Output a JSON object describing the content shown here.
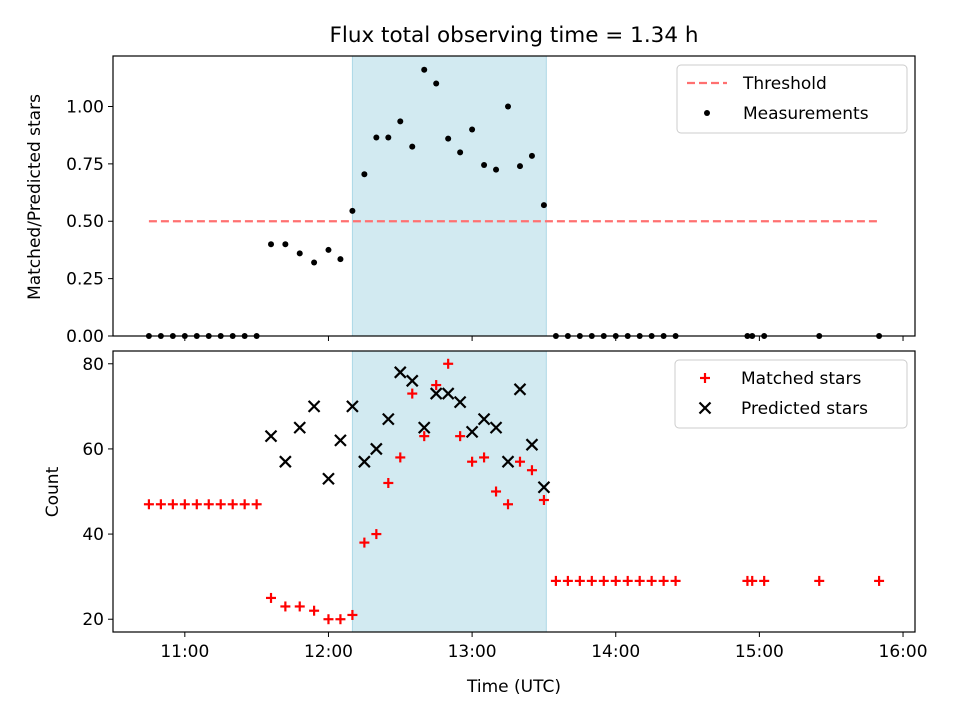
{
  "chart_data": {
    "type": "scatter",
    "title": "Flux total observing time = 1.34 h",
    "xlabel": "Time (UTC)",
    "xlim": [
      "10:30",
      "16:05"
    ],
    "xticks": [
      "11:00",
      "12:00",
      "13:00",
      "14:00",
      "15:00",
      "16:00"
    ],
    "shaded_region": {
      "start": "12:10",
      "end": "13:31",
      "color": "#add8e6"
    },
    "legend_position": "top-right",
    "panels": [
      {
        "ylabel": "Matched/Predicted stars",
        "ylim": [
          0,
          1.22
        ],
        "yticks": [
          "0.00",
          "0.25",
          "0.50",
          "0.75",
          "1.00"
        ],
        "series": [
          {
            "name": "Threshold",
            "kind": "dashed-line",
            "color": "#ff7070",
            "points": [
              [
                "10:45",
                0.5
              ],
              [
                "15:50",
                0.5
              ]
            ]
          },
          {
            "name": "Measurements",
            "kind": "dot",
            "color": "#000000",
            "points": [
              [
                "10:45",
                0
              ],
              [
                "10:50",
                0
              ],
              [
                "10:55",
                0
              ],
              [
                "11:00",
                0
              ],
              [
                "11:05",
                0
              ],
              [
                "11:10",
                0
              ],
              [
                "11:15",
                0
              ],
              [
                "11:20",
                0
              ],
              [
                "11:25",
                0
              ],
              [
                "11:30",
                0
              ],
              [
                "11:36",
                0.4
              ],
              [
                "11:42",
                0.4
              ],
              [
                "11:48",
                0.36
              ],
              [
                "11:54",
                0.32
              ],
              [
                "12:00",
                0.375
              ],
              [
                "12:05",
                0.335
              ],
              [
                "12:10",
                0.545
              ],
              [
                "12:15",
                0.705
              ],
              [
                "12:20",
                0.865
              ],
              [
                "12:25",
                0.865
              ],
              [
                "12:30",
                0.935
              ],
              [
                "12:35",
                0.825
              ],
              [
                "12:40",
                1.16
              ],
              [
                "12:45",
                1.1
              ],
              [
                "12:50",
                0.86
              ],
              [
                "12:55",
                0.8
              ],
              [
                "13:00",
                0.9
              ],
              [
                "13:05",
                0.745
              ],
              [
                "13:10",
                0.725
              ],
              [
                "13:15",
                1.0
              ],
              [
                "13:20",
                0.74
              ],
              [
                "13:25",
                0.785
              ],
              [
                "13:30",
                0.57
              ],
              [
                "13:35",
                0
              ],
              [
                "13:40",
                0
              ],
              [
                "13:45",
                0
              ],
              [
                "13:50",
                0
              ],
              [
                "13:55",
                0
              ],
              [
                "14:00",
                0
              ],
              [
                "14:05",
                0
              ],
              [
                "14:10",
                0
              ],
              [
                "14:15",
                0
              ],
              [
                "14:20",
                0
              ],
              [
                "14:25",
                0
              ],
              [
                "14:55",
                0
              ],
              [
                "14:57",
                0
              ],
              [
                "15:02",
                0
              ],
              [
                "15:25",
                0
              ],
              [
                "15:50",
                0
              ]
            ]
          }
        ]
      },
      {
        "ylabel": "Count",
        "ylim": [
          17,
          83
        ],
        "yticks": [
          "20",
          "40",
          "60",
          "80"
        ],
        "series": [
          {
            "name": "Matched stars",
            "kind": "plus",
            "color": "#ff0000",
            "points": [
              [
                "10:45",
                47
              ],
              [
                "10:50",
                47
              ],
              [
                "10:55",
                47
              ],
              [
                "11:00",
                47
              ],
              [
                "11:05",
                47
              ],
              [
                "11:10",
                47
              ],
              [
                "11:15",
                47
              ],
              [
                "11:20",
                47
              ],
              [
                "11:25",
                47
              ],
              [
                "11:30",
                47
              ],
              [
                "11:36",
                25
              ],
              [
                "11:42",
                23
              ],
              [
                "11:48",
                23
              ],
              [
                "11:54",
                22
              ],
              [
                "12:00",
                20
              ],
              [
                "12:05",
                20
              ],
              [
                "12:10",
                21
              ],
              [
                "12:15",
                38
              ],
              [
                "12:20",
                40
              ],
              [
                "12:25",
                52
              ],
              [
                "12:30",
                58
              ],
              [
                "12:35",
                73
              ],
              [
                "12:40",
                63
              ],
              [
                "12:45",
                75
              ],
              [
                "12:50",
                80
              ],
              [
                "12:55",
                63
              ],
              [
                "13:00",
                57
              ],
              [
                "13:05",
                58
              ],
              [
                "13:10",
                50
              ],
              [
                "13:15",
                47
              ],
              [
                "13:20",
                57
              ],
              [
                "13:25",
                55
              ],
              [
                "13:30",
                48
              ],
              [
                "13:35",
                29
              ],
              [
                "13:40",
                29
              ],
              [
                "13:45",
                29
              ],
              [
                "13:50",
                29
              ],
              [
                "13:55",
                29
              ],
              [
                "14:00",
                29
              ],
              [
                "14:05",
                29
              ],
              [
                "14:10",
                29
              ],
              [
                "14:15",
                29
              ],
              [
                "14:20",
                29
              ],
              [
                "14:25",
                29
              ],
              [
                "14:55",
                29
              ],
              [
                "14:57",
                29
              ],
              [
                "15:02",
                29
              ],
              [
                "15:25",
                29
              ],
              [
                "15:50",
                29
              ]
            ]
          },
          {
            "name": "Predicted stars",
            "kind": "cross",
            "color": "#000000",
            "points": [
              [
                "11:36",
                63
              ],
              [
                "11:42",
                57
              ],
              [
                "11:48",
                65
              ],
              [
                "11:54",
                70
              ],
              [
                "12:00",
                53
              ],
              [
                "12:05",
                62
              ],
              [
                "12:10",
                70
              ],
              [
                "12:15",
                57
              ],
              [
                "12:20",
                60
              ],
              [
                "12:25",
                67
              ],
              [
                "12:30",
                78
              ],
              [
                "12:35",
                76
              ],
              [
                "12:40",
                65
              ],
              [
                "12:45",
                73
              ],
              [
                "12:50",
                73
              ],
              [
                "12:55",
                71
              ],
              [
                "13:00",
                64
              ],
              [
                "13:05",
                67
              ],
              [
                "13:10",
                65
              ],
              [
                "13:15",
                57
              ],
              [
                "13:20",
                74
              ],
              [
                "13:25",
                61
              ],
              [
                "13:30",
                51
              ]
            ]
          }
        ]
      }
    ]
  }
}
